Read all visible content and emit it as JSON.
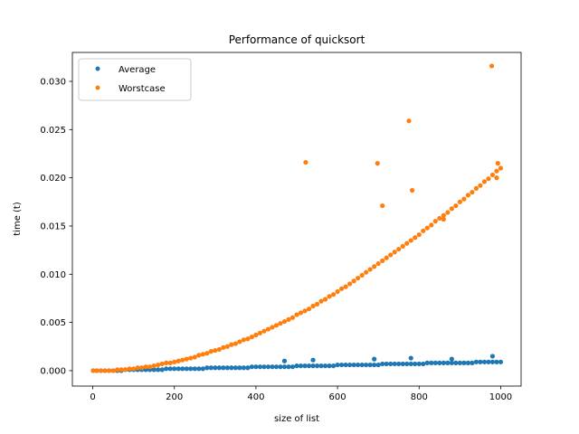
{
  "chart_data": {
    "type": "scatter",
    "title": "Performance of quicksort",
    "xlabel": "size of list",
    "ylabel": "time (t)",
    "xlim": [
      -50,
      1050
    ],
    "ylim": [
      -0.0016,
      0.033
    ],
    "xticks": [
      0,
      200,
      400,
      600,
      800,
      1000
    ],
    "xtick_labels": [
      "0",
      "200",
      "400",
      "600",
      "800",
      "1000"
    ],
    "yticks": [
      0.0,
      0.005,
      0.01,
      0.015,
      0.02,
      0.025,
      0.03
    ],
    "ytick_labels": [
      "0.000",
      "0.005",
      "0.010",
      "0.015",
      "0.020",
      "0.025",
      "0.030"
    ],
    "grid": false,
    "legend_position": "upper-left",
    "series": [
      {
        "name": "Average",
        "color": "#1f77b4",
        "x": [
          1,
          10,
          20,
          30,
          40,
          50,
          60,
          70,
          80,
          90,
          100,
          110,
          120,
          130,
          140,
          150,
          160,
          170,
          180,
          190,
          200,
          210,
          220,
          230,
          240,
          250,
          260,
          270,
          280,
          290,
          300,
          310,
          320,
          330,
          340,
          350,
          360,
          370,
          380,
          390,
          400,
          410,
          420,
          430,
          440,
          450,
          460,
          470,
          480,
          490,
          500,
          510,
          520,
          530,
          540,
          550,
          560,
          570,
          580,
          590,
          600,
          610,
          620,
          630,
          640,
          650,
          660,
          670,
          680,
          690,
          700,
          710,
          720,
          730,
          740,
          750,
          760,
          770,
          780,
          790,
          800,
          810,
          820,
          830,
          840,
          850,
          860,
          870,
          880,
          890,
          900,
          910,
          920,
          930,
          940,
          950,
          960,
          970,
          980,
          990,
          1000,
          470,
          540,
          690,
          780,
          880,
          980
        ],
        "y": [
          0.0,
          0.0,
          0.0,
          0.0,
          0.0,
          0.0,
          0.0,
          0.0,
          0.0001,
          0.0001,
          0.0001,
          0.0001,
          0.0001,
          0.0001,
          0.0001,
          0.0001,
          0.0001,
          0.0001,
          0.0002,
          0.0002,
          0.0002,
          0.0002,
          0.0002,
          0.0002,
          0.0002,
          0.0002,
          0.0002,
          0.0002,
          0.0003,
          0.0003,
          0.0003,
          0.0003,
          0.0003,
          0.0003,
          0.0003,
          0.0003,
          0.0003,
          0.0003,
          0.0003,
          0.0004,
          0.0004,
          0.0004,
          0.0004,
          0.0004,
          0.0004,
          0.0004,
          0.0004,
          0.0004,
          0.0004,
          0.0004,
          0.0005,
          0.0005,
          0.0005,
          0.0005,
          0.0005,
          0.0005,
          0.0005,
          0.0005,
          0.0005,
          0.0005,
          0.0006,
          0.0006,
          0.0006,
          0.0006,
          0.0006,
          0.0006,
          0.0006,
          0.0006,
          0.0006,
          0.0006,
          0.0006,
          0.0007,
          0.0007,
          0.0007,
          0.0007,
          0.0007,
          0.0007,
          0.0007,
          0.0007,
          0.0007,
          0.0007,
          0.0007,
          0.0008,
          0.0008,
          0.0008,
          0.0008,
          0.0008,
          0.0008,
          0.0008,
          0.0008,
          0.0008,
          0.0008,
          0.0008,
          0.0008,
          0.0009,
          0.0009,
          0.0009,
          0.0009,
          0.0009,
          0.0009,
          0.0009,
          0.001,
          0.0011,
          0.0012,
          0.0013,
          0.0012,
          0.0015
        ]
      },
      {
        "name": "Worstcase",
        "color": "#ff7f0e",
        "x": [
          1,
          10,
          20,
          30,
          40,
          50,
          60,
          70,
          80,
          90,
          100,
          110,
          120,
          130,
          140,
          150,
          160,
          170,
          180,
          190,
          200,
          210,
          220,
          230,
          240,
          250,
          260,
          270,
          280,
          290,
          300,
          310,
          320,
          330,
          340,
          350,
          360,
          370,
          380,
          390,
          400,
          410,
          420,
          430,
          440,
          450,
          460,
          470,
          480,
          490,
          500,
          510,
          520,
          530,
          540,
          550,
          560,
          570,
          580,
          590,
          600,
          610,
          620,
          630,
          640,
          650,
          660,
          670,
          680,
          690,
          700,
          710,
          720,
          730,
          740,
          750,
          760,
          770,
          780,
          790,
          800,
          810,
          820,
          830,
          840,
          850,
          860,
          870,
          880,
          890,
          900,
          910,
          920,
          930,
          940,
          950,
          960,
          970,
          980,
          990,
          1000,
          522,
          698,
          775,
          783,
          978,
          993,
          710,
          860,
          990
        ],
        "y": [
          0.0,
          0.0,
          0.0,
          0.0,
          0.0,
          0.0,
          0.0001,
          0.0001,
          0.0001,
          0.0002,
          0.0002,
          0.0003,
          0.0003,
          0.0004,
          0.0004,
          0.0005,
          0.0006,
          0.0007,
          0.0008,
          0.0008,
          0.0009,
          0.001,
          0.0011,
          0.0012,
          0.0013,
          0.0014,
          0.0016,
          0.0017,
          0.0018,
          0.002,
          0.0021,
          0.0022,
          0.0024,
          0.0025,
          0.0027,
          0.0028,
          0.003,
          0.0032,
          0.0033,
          0.0035,
          0.0037,
          0.0039,
          0.0041,
          0.0043,
          0.0045,
          0.0047,
          0.0049,
          0.0051,
          0.0053,
          0.0055,
          0.0058,
          0.006,
          0.0062,
          0.0064,
          0.0067,
          0.0069,
          0.0072,
          0.0074,
          0.0077,
          0.0079,
          0.0082,
          0.0085,
          0.0087,
          0.009,
          0.0093,
          0.0096,
          0.0099,
          0.0102,
          0.0105,
          0.0108,
          0.0111,
          0.0114,
          0.0117,
          0.012,
          0.0123,
          0.0126,
          0.0129,
          0.0132,
          0.0135,
          0.0138,
          0.0141,
          0.0145,
          0.0148,
          0.0151,
          0.0155,
          0.0158,
          0.0161,
          0.0164,
          0.0168,
          0.0171,
          0.0175,
          0.0178,
          0.0182,
          0.0185,
          0.0189,
          0.0192,
          0.0196,
          0.0199,
          0.0203,
          0.0207,
          0.021,
          0.0216,
          0.0215,
          0.0259,
          0.0187,
          0.0316,
          0.0215,
          0.0171,
          0.0157,
          0.02
        ]
      }
    ]
  }
}
